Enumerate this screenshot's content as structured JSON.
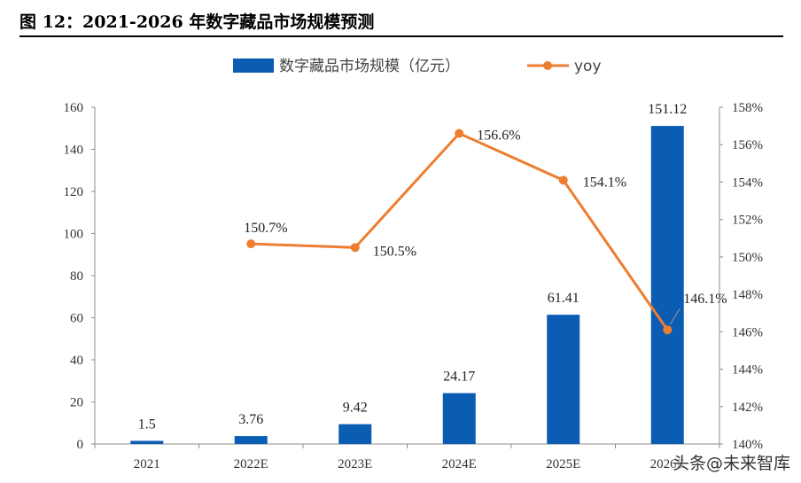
{
  "figure": {
    "title": "图 12：2021-2026 年数字藏品市场规模预测"
  },
  "watermark": "头条@未来智库",
  "chart_data": {
    "type": "bar+line",
    "categories": [
      "2021",
      "2022E",
      "2023E",
      "2024E",
      "2025E",
      "2026E"
    ],
    "series": [
      {
        "name": "数字藏品市场规模（亿元）",
        "type": "bar",
        "axis": "left",
        "values": [
          1.5,
          3.76,
          9.42,
          24.17,
          61.41,
          151.12
        ],
        "labels": [
          "1.5",
          "3.76",
          "9.42",
          "24.17",
          "61.41",
          "151.12"
        ],
        "color": "#0a5db3"
      },
      {
        "name": "yoy",
        "type": "line",
        "axis": "right",
        "values": [
          null,
          150.7,
          150.5,
          156.6,
          154.1,
          146.1
        ],
        "labels": [
          "",
          "150.7%",
          "150.5%",
          "156.6%",
          "154.1%",
          "146.1%"
        ],
        "color": "#ed7d31"
      }
    ],
    "y_left": {
      "min": 0,
      "max": 160,
      "step": 20
    },
    "y_right": {
      "min": 140,
      "max": 158,
      "step": 2,
      "suffix": "%"
    },
    "legend_position": "top"
  }
}
